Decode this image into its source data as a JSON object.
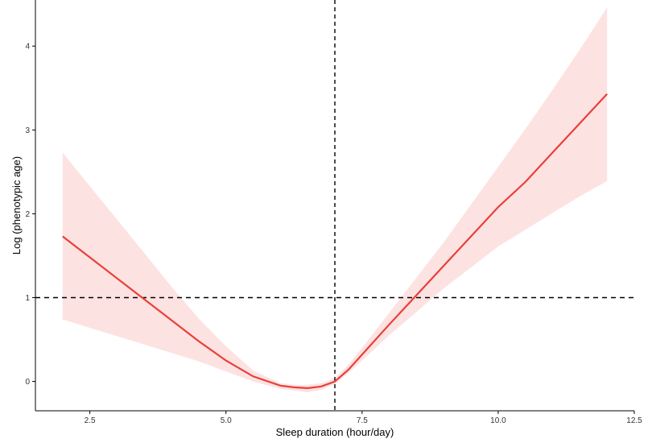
{
  "chart_data": {
    "type": "line",
    "title": "",
    "xlabel": "Sleep duration (hour/day)",
    "ylabel": "Log (phenotypic age)",
    "xlim": [
      1.5,
      12.5
    ],
    "ylim": [
      -0.35,
      4.55
    ],
    "x_ticks": [
      "2.5",
      "5.0",
      "7.5",
      "10.0",
      "12.5"
    ],
    "x_tick_values": [
      2.5,
      5.0,
      7.5,
      10.0,
      12.5
    ],
    "y_ticks": [
      "0",
      "1",
      "2",
      "3",
      "4"
    ],
    "y_tick_values": [
      0,
      1,
      2,
      3,
      4
    ],
    "grid": false,
    "legend": "none",
    "line_color": "#e8403a",
    "band_color": "#fde2e2",
    "reference_lines": {
      "vertical_x": 7.0,
      "horizontal_y": 1.0
    },
    "series": [
      {
        "x": [
          2.0,
          2.5,
          3.0,
          3.5,
          4.0,
          4.5,
          5.0,
          5.5,
          6.0,
          6.25,
          6.5,
          6.75,
          7.0,
          7.25,
          7.5,
          8.0,
          8.5,
          9.0,
          9.5,
          10.0,
          10.5,
          11.0,
          11.5,
          12.0
        ],
        "y": [
          1.73,
          1.48,
          1.23,
          0.98,
          0.73,
          0.48,
          0.25,
          0.06,
          -0.05,
          -0.07,
          -0.08,
          -0.06,
          0.0,
          0.14,
          0.32,
          0.68,
          1.03,
          1.38,
          1.73,
          2.08,
          2.38,
          2.73,
          3.08,
          3.43
        ],
        "lower": [
          0.74,
          0.64,
          0.54,
          0.44,
          0.34,
          0.24,
          0.12,
          0.0,
          -0.09,
          -0.11,
          -0.13,
          -0.1,
          -0.03,
          0.1,
          0.25,
          0.55,
          0.83,
          1.11,
          1.36,
          1.61,
          1.81,
          2.01,
          2.21,
          2.39
        ],
        "upper": [
          2.73,
          2.33,
          1.93,
          1.53,
          1.13,
          0.75,
          0.42,
          0.13,
          -0.02,
          -0.04,
          -0.04,
          -0.02,
          0.04,
          0.2,
          0.4,
          0.82,
          1.24,
          1.66,
          2.11,
          2.56,
          3.01,
          3.48,
          3.96,
          4.46
        ]
      }
    ]
  }
}
